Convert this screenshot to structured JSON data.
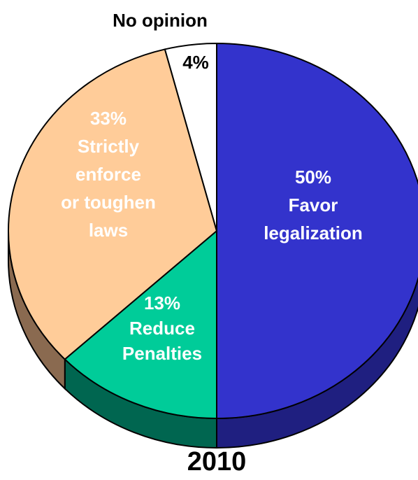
{
  "chart_data": {
    "type": "pie",
    "title": "",
    "caption": "2010",
    "slices": [
      {
        "label_lines": [
          "50%",
          "Favor",
          "legalization"
        ],
        "value": 50,
        "color": "#3333cc",
        "side_color": "#1f1f80"
      },
      {
        "label_lines": [
          "13%",
          "Reduce",
          "Penalties"
        ],
        "value": 13,
        "color": "#00cc99",
        "side_color": "#006650"
      },
      {
        "label_lines": [
          "33%",
          "Strictly",
          "enforce",
          "or toughen",
          "laws"
        ],
        "value": 33,
        "color": "#ffcc99",
        "side_color": "#8a6a50"
      },
      {
        "label_lines": [
          "4%"
        ],
        "outside_label": "No opinion",
        "value": 4,
        "color": "#ffffff",
        "side_color": "#bbbbbb"
      }
    ],
    "legend": "none",
    "style": "3d-pie"
  }
}
